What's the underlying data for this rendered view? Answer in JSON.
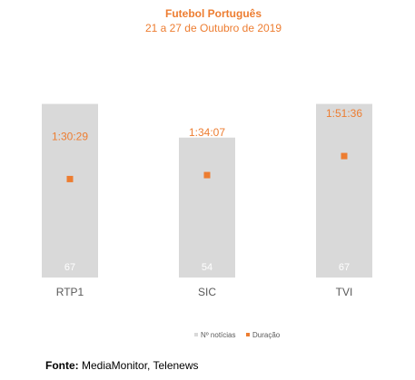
{
  "chart_data": {
    "type": "bar",
    "title": "Futebol Português",
    "subtitle": "21 a 27 de Outubro de 2019",
    "categories": [
      "RTP1",
      "SIC",
      "TVI"
    ],
    "series": [
      {
        "name": "Nº notícias",
        "type": "bar",
        "values": [
          67,
          54,
          67
        ],
        "color": "#D9D9D9"
      },
      {
        "name": "Duração",
        "type": "marker",
        "values": [
          5429,
          5647,
          6696
        ],
        "labels": [
          "1:30:29",
          "1:34:07",
          "1:51:36"
        ],
        "color": "#ED7D31"
      }
    ],
    "ylim_bar": [
      0,
      70
    ],
    "ylim_duration": [
      0,
      10000
    ],
    "legend": "bottom-right",
    "grid": false
  },
  "source": {
    "label": "Fonte:",
    "text": " MediaMonitor, Telenews"
  }
}
